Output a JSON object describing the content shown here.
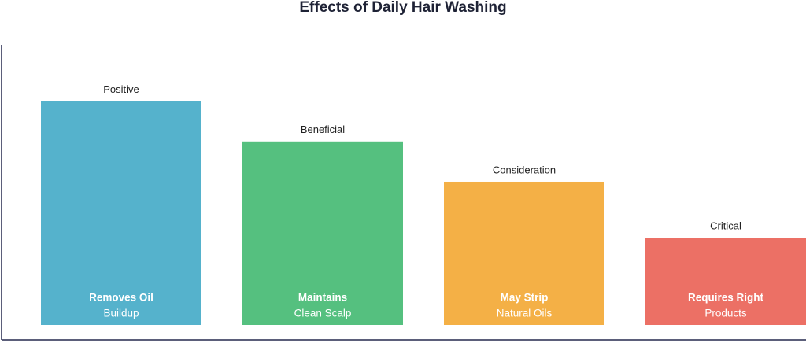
{
  "chart_data": {
    "type": "bar",
    "title": "Effects of Daily Hair Washing",
    "categories": [
      "Removes Oil",
      "Maintains",
      "May Strip",
      "Requires Right"
    ],
    "category_details": [
      "Buildup",
      "Clean Scalp",
      "Natural Oils",
      "Products"
    ],
    "tags": [
      "Positive",
      "Beneficial",
      "Consideration",
      "Critical"
    ],
    "values": [
      100,
      82,
      64,
      39
    ],
    "colors": [
      "#55b2cc",
      "#55c07f",
      "#f4b046",
      "#ec7065"
    ],
    "ylim": [
      0,
      125
    ]
  }
}
